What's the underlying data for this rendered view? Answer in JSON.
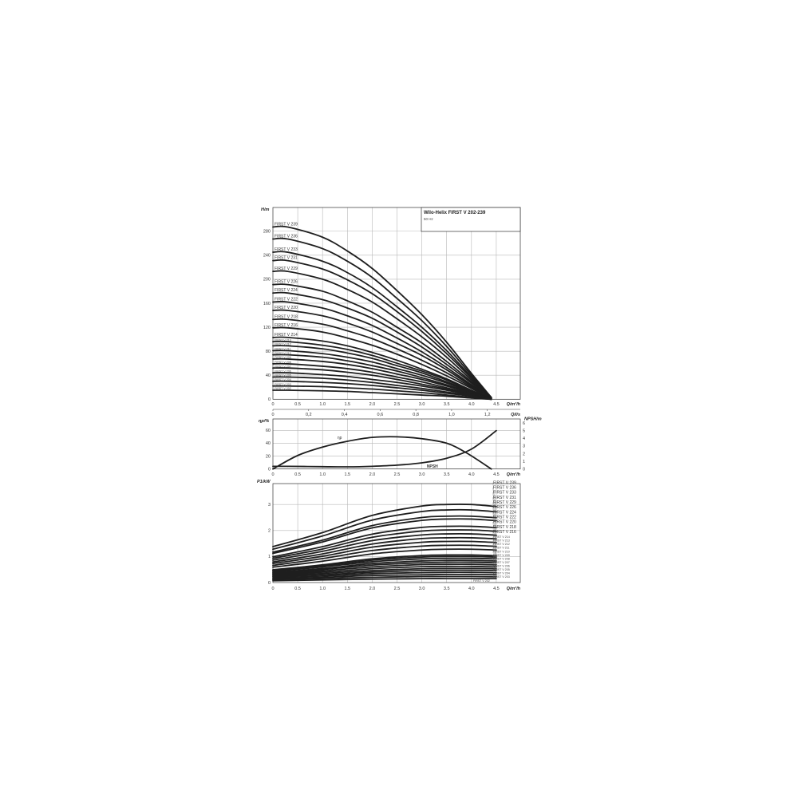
{
  "chart_data": [
    {
      "type": "line",
      "title": "Wilo-Helix FIRST V 202-239",
      "subtitle": "50 Hz",
      "xlabel": "Q/m³/h",
      "x2label": "Q/l/s",
      "ylabel": "H/m",
      "xlim": [
        0,
        4.5
      ],
      "ylim": [
        0,
        280
      ],
      "x_ticks": [
        "0",
        "0.5",
        "1.0",
        "1.5",
        "2.0",
        "2.5",
        "3.0",
        "3.5",
        "4.0",
        "4.5"
      ],
      "x2_ticks": [
        "0",
        "0,2",
        "0,4",
        "0,6",
        "0,8",
        "1,0",
        "1,2"
      ],
      "y_ticks": [
        "0",
        "40",
        "80",
        "120",
        "160",
        "200",
        "240",
        "280"
      ],
      "grid": true,
      "x": [
        0.3,
        1.0,
        1.5,
        2.0,
        2.5,
        3.0,
        3.5,
        4.0,
        4.4
      ],
      "series": [
        {
          "name": "FIRST V 239",
          "values": [
            287,
            270,
            247,
            218,
            181,
            141,
            95,
            43,
            3
          ]
        },
        {
          "name": "FIRST V 236",
          "values": [
            267,
            251,
            230,
            203,
            168,
            131,
            88,
            40,
            3
          ]
        },
        {
          "name": "FIRST V 233",
          "values": [
            245,
            230,
            211,
            186,
            154,
            120,
            81,
            37,
            2
          ]
        },
        {
          "name": "FIRST V 231",
          "values": [
            231,
            217,
            199,
            176,
            146,
            113,
            76,
            35,
            2
          ]
        },
        {
          "name": "FIRST V 229",
          "values": [
            213,
            200,
            183,
            162,
            134,
            104,
            70,
            32,
            2
          ]
        },
        {
          "name": "FIRST V 226",
          "values": [
            191,
            180,
            164,
            145,
            120,
            94,
            63,
            29,
            2
          ]
        },
        {
          "name": "FIRST V 224",
          "values": [
            177,
            166,
            152,
            135,
            112,
            87,
            58,
            27,
            2
          ]
        },
        {
          "name": "FIRST V 222",
          "values": [
            162,
            152,
            139,
            123,
            102,
            79,
            53,
            24,
            2
          ]
        },
        {
          "name": "FIRST V 220",
          "values": [
            148,
            139,
            127,
            112,
            93,
            73,
            49,
            22,
            1
          ]
        },
        {
          "name": "FIRST V 218",
          "values": [
            133,
            125,
            114,
            101,
            84,
            65,
            44,
            20,
            1
          ]
        },
        {
          "name": "FIRST V 216",
          "values": [
            119,
            112,
            102,
            90,
            75,
            58,
            39,
            18,
            1
          ]
        },
        {
          "name": "FIRST V 214",
          "values": [
            103,
            97,
            89,
            78,
            65,
            50,
            34,
            15,
            1
          ]
        },
        {
          "name": "FIRST V 213",
          "values": [
            96,
            90,
            83,
            73,
            60,
            47,
            32,
            14,
            1
          ]
        },
        {
          "name": "FIRST V 212",
          "values": [
            89,
            84,
            77,
            68,
            56,
            44,
            29,
            13,
            1
          ]
        },
        {
          "name": "FIRST V 211",
          "values": [
            81,
            76,
            70,
            62,
            51,
            40,
            27,
            12,
            1
          ]
        },
        {
          "name": "FIRST V 210",
          "values": [
            74,
            70,
            64,
            56,
            47,
            36,
            24,
            11,
            1
          ]
        },
        {
          "name": "FIRST V 209",
          "values": [
            67,
            63,
            58,
            51,
            42,
            33,
            22,
            10,
            1
          ]
        },
        {
          "name": "FIRST V 208",
          "values": [
            59,
            55,
            51,
            45,
            37,
            29,
            19,
            9,
            1
          ]
        },
        {
          "name": "FIRST V 207",
          "values": [
            52,
            49,
            45,
            40,
            33,
            25,
            17,
            8,
            1
          ]
        },
        {
          "name": "FIRST V 206",
          "values": [
            44,
            41,
            38,
            33,
            28,
            22,
            15,
            7,
            0
          ]
        },
        {
          "name": "FIRST V 205",
          "values": [
            37,
            35,
            32,
            28,
            23,
            18,
            12,
            6,
            0
          ]
        },
        {
          "name": "FIRST V 204",
          "values": [
            30,
            28,
            26,
            23,
            19,
            15,
            10,
            5,
            0
          ]
        },
        {
          "name": "FIRST V 203",
          "values": [
            22,
            21,
            19,
            17,
            14,
            11,
            7,
            3,
            0
          ]
        },
        {
          "name": "FIRST V 202",
          "values": [
            15,
            14,
            13,
            11,
            9,
            7,
            5,
            2,
            0
          ]
        }
      ]
    },
    {
      "type": "line",
      "xlabel": "Q/m³/h",
      "ylabel": "ηp/%",
      "y2label": "NPSH/m",
      "xlim": [
        0,
        4.5
      ],
      "ylim": [
        0,
        60
      ],
      "y2lim": [
        0,
        6
      ],
      "x_ticks": [
        "0",
        "0.5",
        "1.0",
        "1.5",
        "2.0",
        "2.5",
        "3.0",
        "3.5",
        "4.0",
        "4.5"
      ],
      "y_ticks": [
        "0",
        "20",
        "40",
        "60"
      ],
      "y2_ticks": [
        "0",
        "1",
        "2",
        "3",
        "4",
        "5",
        "6"
      ],
      "grid": true,
      "series": [
        {
          "name": "ηp",
          "axis": "left",
          "x": [
            0,
            0.5,
            1.0,
            1.5,
            2.0,
            2.5,
            3.0,
            3.5,
            3.9,
            4.4
          ],
          "values": [
            0,
            21,
            34,
            43,
            49,
            50,
            47,
            40,
            25,
            0
          ]
        },
        {
          "name": "NPSH",
          "axis": "right",
          "x": [
            0.3,
            1.0,
            1.5,
            2.0,
            2.5,
            3.0,
            3.5,
            4.0,
            4.5
          ],
          "values": [
            0.35,
            0.3,
            0.28,
            0.35,
            0.5,
            0.8,
            1.4,
            2.6,
            5.0
          ]
        }
      ]
    },
    {
      "type": "line",
      "xlabel": "Q/m³/h",
      "ylabel": "P1/kW",
      "xlim": [
        0,
        4.5
      ],
      "ylim": [
        0,
        3.5
      ],
      "x_ticks": [
        "0",
        "0.5",
        "1.0",
        "1.5",
        "2.0",
        "2.5",
        "3.0",
        "3.5",
        "4.0",
        "4.5"
      ],
      "y_ticks": [
        "0",
        "1",
        "2",
        "3"
      ],
      "grid": true,
      "x": [
        0,
        1.0,
        2.0,
        3.0,
        3.5,
        4.0,
        4.5
      ],
      "series": [
        {
          "name": "FIRST V 239",
          "values": [
            1.38,
            1.92,
            2.58,
            2.94,
            3.0,
            3.0,
            2.92
          ]
        },
        {
          "name": "FIRST V 236",
          "values": [
            1.28,
            1.79,
            2.4,
            2.73,
            2.79,
            2.79,
            2.72
          ]
        },
        {
          "name": "FIRST V 233",
          "values": [
            1.17,
            1.63,
            2.19,
            2.5,
            2.55,
            2.55,
            2.49
          ]
        },
        {
          "name": "FIRST V 231",
          "values": [
            1.12,
            1.56,
            2.1,
            2.39,
            2.44,
            2.44,
            2.38
          ]
        },
        {
          "name": "FIRST V 229",
          "values": [
            0.99,
            1.38,
            1.86,
            2.12,
            2.16,
            2.16,
            2.11
          ]
        },
        {
          "name": "FIRST V 226",
          "values": [
            0.93,
            1.29,
            1.74,
            1.98,
            2.02,
            2.02,
            1.97
          ]
        },
        {
          "name": "FIRST V 224",
          "values": [
            0.86,
            1.2,
            1.61,
            1.83,
            1.87,
            1.87,
            1.82
          ]
        },
        {
          "name": "FIRST V 222",
          "values": [
            0.79,
            1.1,
            1.48,
            1.69,
            1.72,
            1.72,
            1.68
          ]
        },
        {
          "name": "FIRST V 220",
          "values": [
            0.73,
            1.01,
            1.36,
            1.55,
            1.58,
            1.58,
            1.54
          ]
        },
        {
          "name": "FIRST V 218",
          "values": [
            0.66,
            0.92,
            1.23,
            1.4,
            1.43,
            1.43,
            1.39
          ]
        },
        {
          "name": "FIRST V 216",
          "values": [
            0.59,
            0.82,
            1.1,
            1.25,
            1.28,
            1.28,
            1.25
          ]
        },
        {
          "name": "FIRST V 214",
          "values": [
            0.49,
            0.68,
            0.91,
            1.04,
            1.06,
            1.06,
            1.03
          ]
        },
        {
          "name": "FIRST V 213",
          "values": [
            0.46,
            0.64,
            0.86,
            0.98,
            1.0,
            1.0,
            0.98
          ]
        },
        {
          "name": "FIRST V 212",
          "values": [
            0.43,
            0.6,
            0.8,
            0.91,
            0.93,
            0.93,
            0.91
          ]
        },
        {
          "name": "FIRST V 211",
          "values": [
            0.39,
            0.54,
            0.73,
            0.83,
            0.85,
            0.85,
            0.83
          ]
        },
        {
          "name": "FIRST V 210",
          "values": [
            0.36,
            0.5,
            0.67,
            0.76,
            0.78,
            0.78,
            0.76
          ]
        },
        {
          "name": "FIRST V 209",
          "values": [
            0.32,
            0.45,
            0.6,
            0.69,
            0.7,
            0.7,
            0.68
          ]
        },
        {
          "name": "FIRST V 208",
          "values": [
            0.29,
            0.4,
            0.53,
            0.61,
            0.62,
            0.62,
            0.6
          ]
        },
        {
          "name": "FIRST V 207",
          "values": [
            0.25,
            0.35,
            0.46,
            0.53,
            0.54,
            0.54,
            0.53
          ]
        },
        {
          "name": "FIRST V 206",
          "values": [
            0.22,
            0.3,
            0.4,
            0.46,
            0.47,
            0.47,
            0.46
          ]
        },
        {
          "name": "FIRST V 205",
          "values": [
            0.18,
            0.25,
            0.34,
            0.38,
            0.39,
            0.39,
            0.38
          ]
        },
        {
          "name": "FIRST V 204",
          "values": [
            0.14,
            0.2,
            0.27,
            0.3,
            0.31,
            0.31,
            0.3
          ]
        },
        {
          "name": "FIRST V 203",
          "values": [
            0.11,
            0.15,
            0.2,
            0.23,
            0.23,
            0.23,
            0.22
          ]
        },
        {
          "name": "FIRST V 202",
          "values": [
            0.07,
            0.1,
            0.13,
            0.15,
            0.15,
            0.15,
            0.15
          ]
        }
      ]
    }
  ]
}
